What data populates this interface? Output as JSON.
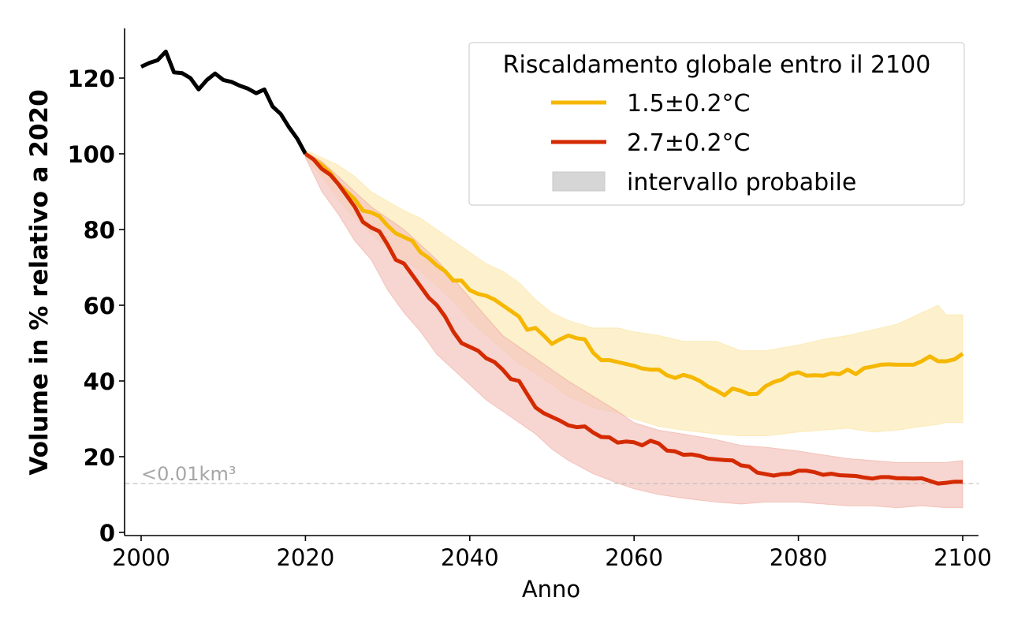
{
  "chart_data": {
    "type": "line",
    "title": "",
    "xlabel": "Anno",
    "ylabel": "Volume in % relativo a 2020",
    "xlim": [
      1998,
      2102
    ],
    "ylim": [
      0,
      133
    ],
    "x_ticks": [
      2000,
      2020,
      2040,
      2060,
      2080,
      2100
    ],
    "y_ticks": [
      0,
      20,
      40,
      60,
      80,
      100,
      120
    ],
    "grid": false,
    "threshold": {
      "value": 12.9,
      "label": "<0.01km³",
      "color": "#bbbbbb",
      "style": "dashed"
    },
    "legend": {
      "title": "Riscaldamento globale entro il 2100",
      "placement": "top-right",
      "entries": [
        {
          "label": "1.5±0.2°C",
          "kind": "line",
          "color": "#f5b700"
        },
        {
          "label": "2.7±0.2°C",
          "kind": "line",
          "color": "#d42a00"
        },
        {
          "label": "intervallo probabile",
          "kind": "patch",
          "color": "#d6d6d6"
        }
      ]
    },
    "series": [
      {
        "name": "observed",
        "color": "#000000",
        "x": [
          2000,
          2001,
          2002,
          2003,
          2004,
          2005,
          2006,
          2007,
          2008,
          2009,
          2010,
          2011,
          2012,
          2013,
          2014,
          2015,
          2016,
          2017,
          2018,
          2019,
          2020
        ],
        "values": [
          123,
          124,
          124.7,
          127,
          121.5,
          121.3,
          120,
          117,
          119.5,
          121.2,
          119.5,
          119,
          118,
          117.2,
          116,
          117,
          112.5,
          110.5,
          107,
          104,
          100
        ]
      },
      {
        "name": "1.5±0.2°C",
        "color": "#f5b700",
        "band_color": "#fdefc8",
        "x": [
          2020,
          2021,
          2022,
          2023,
          2024,
          2025,
          2026,
          2027,
          2028,
          2029,
          2030,
          2031,
          2032,
          2033,
          2034,
          2035,
          2036,
          2037,
          2038,
          2039,
          2040,
          2041,
          2042,
          2043,
          2044,
          2045,
          2046,
          2047,
          2048,
          2049,
          2050,
          2051,
          2052,
          2053,
          2054,
          2055,
          2056,
          2057,
          2058,
          2059,
          2060,
          2061,
          2062,
          2063,
          2064,
          2065,
          2066,
          2067,
          2068,
          2069,
          2070,
          2071,
          2072,
          2073,
          2074,
          2075,
          2076,
          2077,
          2078,
          2079,
          2080,
          2081,
          2082,
          2083,
          2084,
          2085,
          2086,
          2087,
          2088,
          2089,
          2090,
          2091,
          2092,
          2093,
          2094,
          2095,
          2096,
          2097,
          2098,
          2099,
          2100
        ],
        "values": [
          100,
          98.5,
          97,
          95,
          92,
          90,
          88,
          85,
          84.5,
          83.5,
          81,
          79,
          78,
          77,
          74,
          72.5,
          70.5,
          69,
          66.5,
          66.5,
          64,
          63,
          62.5,
          61.5,
          60,
          58.5,
          57,
          53.5,
          54,
          52,
          49.8,
          51,
          52,
          51.3,
          51,
          47.5,
          45.5,
          45.5,
          45,
          44.5,
          44,
          43.3,
          43,
          43,
          41.5,
          40.8,
          41.6,
          41,
          40,
          38.5,
          37.5,
          36.2,
          38,
          37.4,
          36.5,
          36.6,
          38.6,
          39.7,
          40.4,
          41.8,
          42.3,
          41.4,
          41.5,
          41.4,
          42,
          41.8,
          43,
          41.8,
          43.4,
          43.8,
          44.3,
          44.4,
          44.3,
          44.3,
          44.3,
          45.2,
          46.5,
          45.2,
          45.2,
          45.7,
          47.2
        ],
        "band_x": [
          2020,
          2022,
          2024,
          2026,
          2028,
          2030,
          2032,
          2034,
          2036,
          2038,
          2040,
          2042,
          2044,
          2046,
          2048,
          2050,
          2052,
          2055,
          2058,
          2060,
          2063,
          2066,
          2070,
          2073,
          2076,
          2080,
          2083,
          2086,
          2089,
          2092,
          2095,
          2097,
          2098,
          2100
        ],
        "band_upper": [
          101,
          99,
          97,
          94,
          90,
          87.5,
          85,
          83,
          80,
          77,
          74,
          71,
          69,
          66,
          61.5,
          58,
          56,
          54,
          54,
          53,
          52,
          50.5,
          50.5,
          48,
          48,
          49.5,
          51,
          52,
          53.5,
          55,
          58,
          60,
          57.5,
          57.5
        ],
        "band_lower": [
          99,
          94,
          88,
          83,
          79,
          75,
          72,
          69,
          65,
          61,
          56,
          52,
          48.5,
          44.5,
          42,
          39,
          36,
          33,
          31.5,
          30,
          28,
          27,
          26,
          25.5,
          25.5,
          26.5,
          27,
          27.5,
          26.5,
          27,
          28,
          28.5,
          29,
          29
        ]
      },
      {
        "name": "2.7±0.2°C",
        "color": "#d42a00",
        "band_color": "#f3c3bd",
        "x": [
          2020,
          2021,
          2022,
          2023,
          2024,
          2025,
          2026,
          2027,
          2028,
          2029,
          2030,
          2031,
          2032,
          2033,
          2034,
          2035,
          2036,
          2037,
          2038,
          2039,
          2040,
          2041,
          2042,
          2043,
          2044,
          2045,
          2046,
          2047,
          2048,
          2049,
          2050,
          2051,
          2052,
          2053,
          2054,
          2055,
          2056,
          2057,
          2058,
          2059,
          2060,
          2061,
          2062,
          2063,
          2064,
          2065,
          2066,
          2067,
          2068,
          2069,
          2070,
          2071,
          2072,
          2073,
          2074,
          2075,
          2076,
          2077,
          2078,
          2079,
          2080,
          2081,
          2082,
          2083,
          2084,
          2085,
          2086,
          2087,
          2088,
          2089,
          2090,
          2091,
          2092,
          2093,
          2094,
          2095,
          2096,
          2097,
          2098,
          2099,
          2100
        ],
        "values": [
          100,
          98.5,
          96,
          94.5,
          92,
          89,
          86,
          82,
          80.5,
          79.5,
          76,
          72,
          71,
          68,
          65,
          62,
          60,
          57,
          53,
          50,
          49,
          48,
          46,
          45,
          43,
          40.5,
          40,
          36.5,
          33,
          31.5,
          30.5,
          29.5,
          28.3,
          27.8,
          28,
          26.4,
          25.2,
          25.1,
          23.7,
          24,
          23.8,
          23,
          24.2,
          23.5,
          21.6,
          21.4,
          20.5,
          20.6,
          20.2,
          19.5,
          19.3,
          19.1,
          19,
          17.7,
          17.4,
          15.8,
          15.4,
          15,
          15.4,
          15.5,
          16.3,
          16.3,
          15.9,
          15.2,
          15.5,
          15.1,
          15,
          14.9,
          14.5,
          14.2,
          14.6,
          14.6,
          14.3,
          14.3,
          14.2,
          14.3,
          13.6,
          12.9,
          13.1,
          13.4,
          13.4
        ],
        "band_x": [
          2020,
          2022,
          2024,
          2026,
          2028,
          2030,
          2032,
          2034,
          2036,
          2038,
          2040,
          2042,
          2044,
          2046,
          2048,
          2050,
          2052,
          2055,
          2058,
          2060,
          2063,
          2066,
          2070,
          2073,
          2076,
          2080,
          2083,
          2086,
          2089,
          2092,
          2095,
          2098,
          2100
        ],
        "band_upper": [
          100.5,
          98,
          94,
          90,
          86,
          83,
          80,
          76,
          72,
          67,
          62,
          57,
          52,
          49,
          46,
          43,
          40,
          36,
          32,
          29,
          27,
          26,
          24.5,
          23,
          22.5,
          21.5,
          20.5,
          19.5,
          19,
          18.5,
          18.5,
          18.5,
          19
        ],
        "band_lower": [
          99,
          90,
          84,
          77,
          72,
          64,
          58,
          53,
          47,
          43,
          39,
          35,
          32,
          29,
          26,
          22,
          19,
          15.5,
          13,
          11.5,
          10,
          9,
          8,
          7.5,
          8,
          8,
          7.5,
          7,
          7,
          6.5,
          7,
          6.5,
          6.5
        ]
      }
    ]
  }
}
